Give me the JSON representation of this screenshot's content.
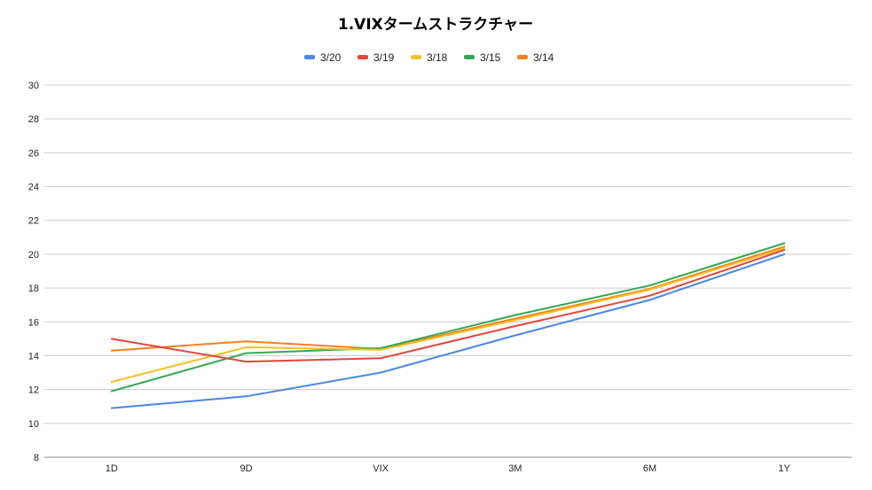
{
  "chart_data": {
    "type": "line",
    "title": "1.VIXタームストラクチャー",
    "xlabel": "",
    "ylabel": "",
    "categories": [
      "1D",
      "9D",
      "VIX",
      "3M",
      "6M",
      "1Y"
    ],
    "ylim": [
      8,
      30
    ],
    "yticks": [
      8,
      10,
      12,
      14,
      16,
      18,
      20,
      22,
      24,
      26,
      28,
      30
    ],
    "grid": true,
    "legend_position": "top",
    "series": [
      {
        "name": "3/20",
        "color": "#4a86e8",
        "values": [
          10.9,
          11.6,
          13.0,
          15.2,
          17.3,
          20.0
        ]
      },
      {
        "name": "3/19",
        "color": "#e2453c",
        "values": [
          15.0,
          13.65,
          13.85,
          15.75,
          17.55,
          20.25
        ]
      },
      {
        "name": "3/18",
        "color": "#f6bf26",
        "values": [
          12.45,
          14.5,
          14.35,
          16.1,
          17.9,
          20.35
        ]
      },
      {
        "name": "3/15",
        "color": "#34a853",
        "values": [
          11.9,
          14.15,
          14.45,
          16.4,
          18.15,
          20.65
        ]
      },
      {
        "name": "3/14",
        "color": "#f4811f",
        "values": [
          14.3,
          14.85,
          14.4,
          16.2,
          17.95,
          20.45
        ]
      }
    ]
  }
}
